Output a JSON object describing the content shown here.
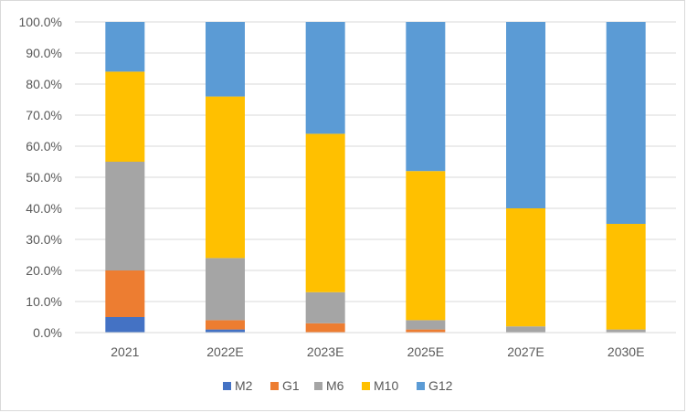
{
  "chart_data": {
    "type": "bar",
    "stacked": true,
    "categories": [
      "2021",
      "2022E",
      "2023E",
      "2025E",
      "2027E",
      "2030E"
    ],
    "series": [
      {
        "name": "M2",
        "color": "#4472C4",
        "values": [
          5.0,
          1.0,
          0.0,
          0.0,
          0.0,
          0.0
        ]
      },
      {
        "name": "G1",
        "color": "#ED7D31",
        "values": [
          15.0,
          3.0,
          3.0,
          1.0,
          0.0,
          0.0
        ]
      },
      {
        "name": "M6",
        "color": "#A5A5A5",
        "values": [
          35.0,
          20.0,
          10.0,
          3.0,
          2.0,
          1.0
        ]
      },
      {
        "name": "M10",
        "color": "#FFC000",
        "values": [
          29.0,
          52.0,
          51.0,
          48.0,
          38.0,
          34.0
        ]
      },
      {
        "name": "G12",
        "color": "#5B9BD5",
        "values": [
          16.0,
          24.0,
          36.0,
          48.0,
          60.0,
          65.0
        ]
      }
    ],
    "ylim": [
      0,
      100
    ],
    "yticks": [
      "0.0%",
      "10.0%",
      "20.0%",
      "30.0%",
      "40.0%",
      "50.0%",
      "60.0%",
      "70.0%",
      "80.0%",
      "90.0%",
      "100.0%"
    ],
    "grid": true,
    "legend_position": "bottom",
    "title": "",
    "xlabel": "",
    "ylabel": ""
  }
}
